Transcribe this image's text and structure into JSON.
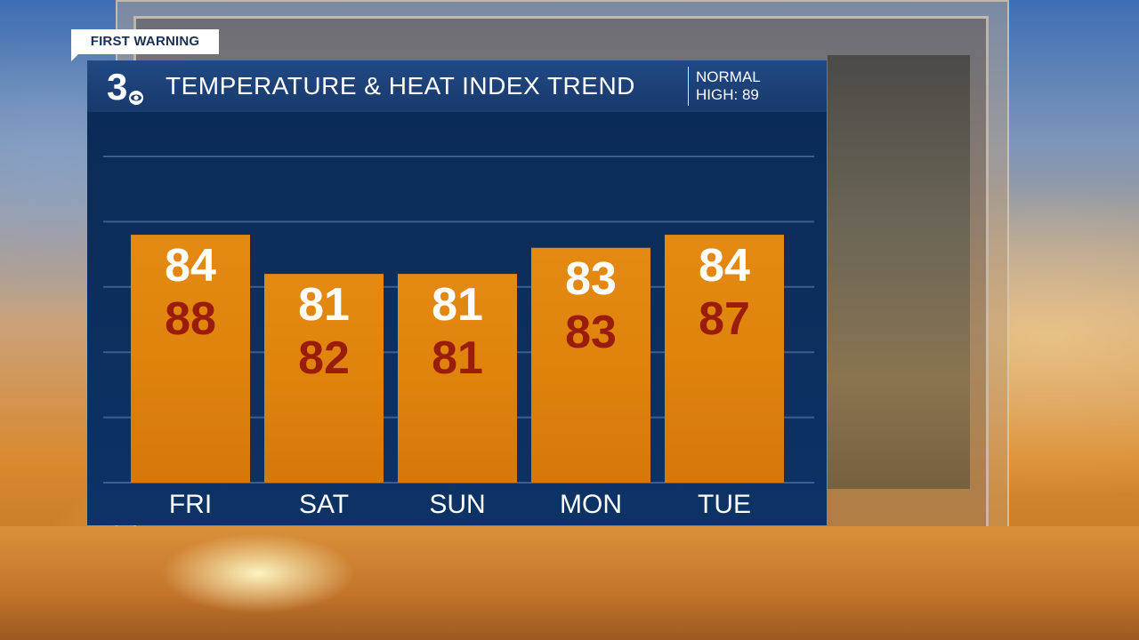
{
  "banner": {
    "label": "FIRST WARNING"
  },
  "header": {
    "logo_text": "3",
    "title": "TEMPERATURE & HEAT INDEX TREND",
    "normal_line1": "NORMAL",
    "normal_line2": "HIGH: 89"
  },
  "colors": {
    "panel": "#0b2a55",
    "header": "#214a85",
    "bar_top": "#e48a12",
    "bar_bottom": "#d5780a",
    "temp_text": "#ffffff",
    "heat_index_text": "#9a1d0c"
  },
  "chart_data": {
    "type": "bar",
    "title": "TEMPERATURE & HEAT INDEX TREND",
    "categories": [
      "FRI",
      "SAT",
      "SUN",
      "MON",
      "TUE"
    ],
    "series": [
      {
        "values": [
          84,
          81,
          81,
          83,
          84
        ]
      },
      {
        "values": [
          88,
          82,
          81,
          83,
          87
        ]
      }
    ],
    "ylim": [
      65,
      90
    ],
    "grid": true
  }
}
